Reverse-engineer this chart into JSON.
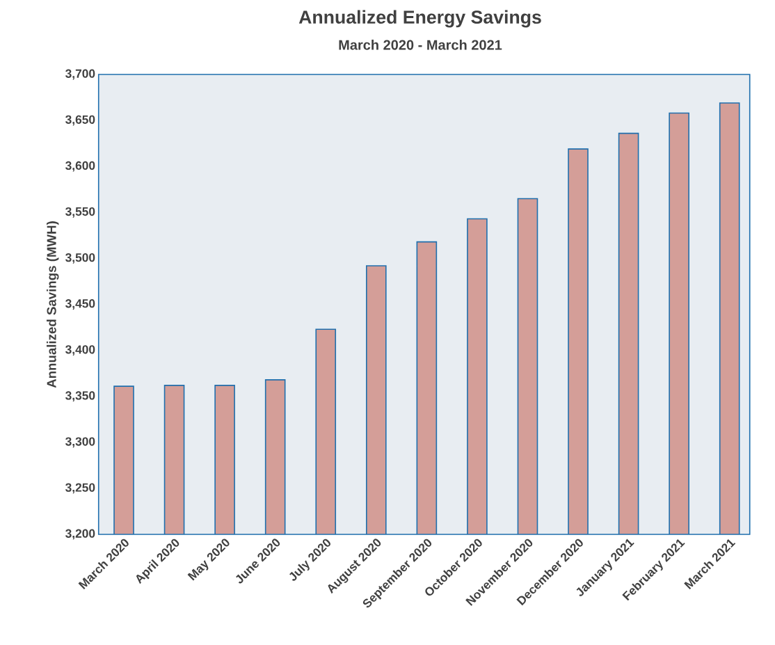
{
  "chart_data": {
    "type": "bar",
    "title": "Annualized Energy Savings",
    "subtitle": "March 2020 - March 2021",
    "ylabel": "Annualized Savings (MWH)",
    "categories": [
      "March 2020",
      "April 2020",
      "May 2020",
      "June 2020",
      "July 2020",
      "August 2020",
      "September 2020",
      "October 2020",
      "November 2020",
      "December 2020",
      "January 2021",
      "February 2021",
      "March 2021"
    ],
    "values": [
      3361,
      3362,
      3362,
      3368,
      3423,
      3492,
      3518,
      3543,
      3565,
      3619,
      3636,
      3658,
      3669
    ],
    "color": "#d49e98",
    "ylim": [
      3200,
      3700
    ],
    "yticks": [
      {
        "value": 3200,
        "label": "3,200"
      },
      {
        "value": 3250,
        "label": "3,250"
      },
      {
        "value": 3300,
        "label": "3,300"
      },
      {
        "value": 3350,
        "label": "3,350"
      },
      {
        "value": 3400,
        "label": "3,400"
      },
      {
        "value": 3450,
        "label": "3,450"
      },
      {
        "value": 3500,
        "label": "3,500"
      },
      {
        "value": 3550,
        "label": "3,550"
      },
      {
        "value": 3600,
        "label": "3,600"
      },
      {
        "value": 3650,
        "label": "3,650"
      },
      {
        "value": 3700,
        "label": "3,700"
      }
    ]
  }
}
